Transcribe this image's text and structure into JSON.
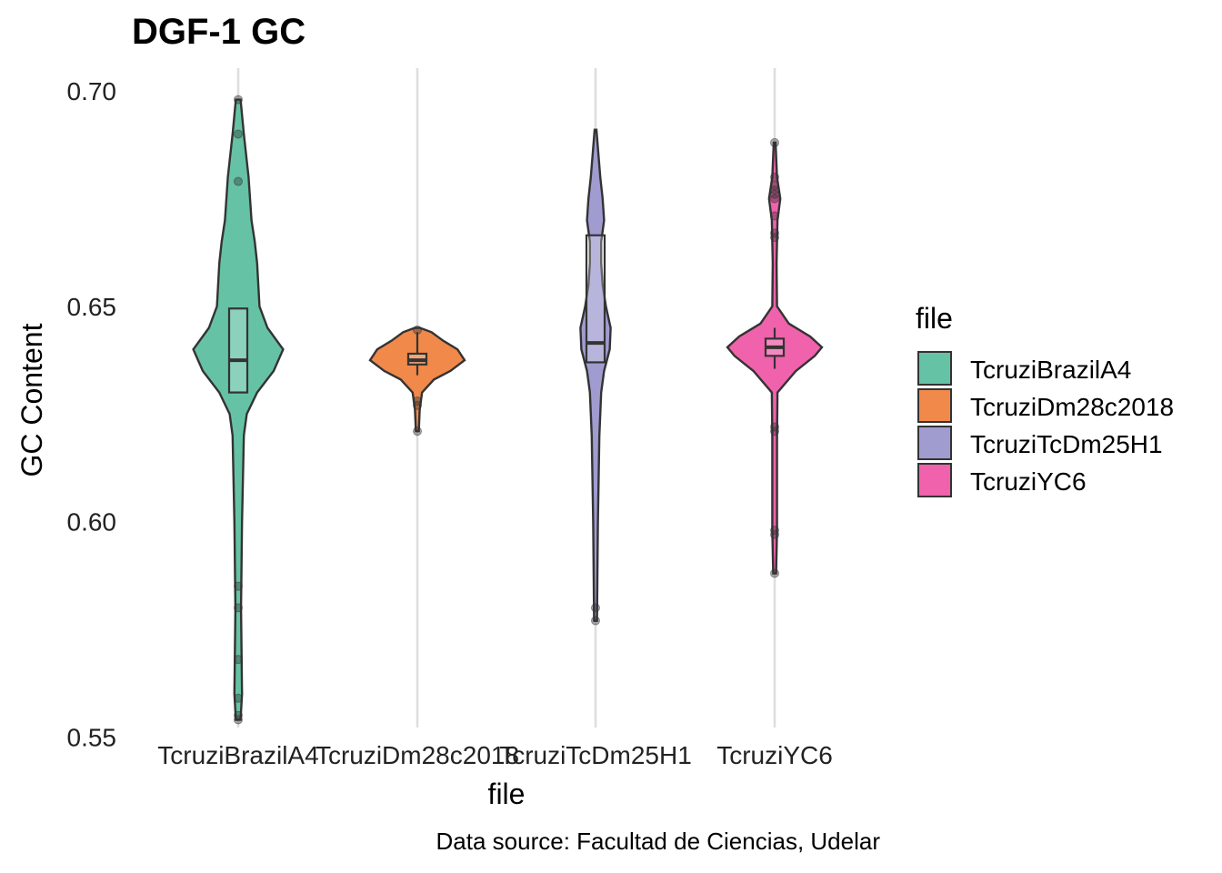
{
  "chart_data": {
    "type": "violin",
    "title": "DGF-1 GC",
    "xlabel": "file",
    "ylabel": "GC Content",
    "caption": "Data source: Facultad de Ciencias, Udelar",
    "ylim": [
      0.5522,
      0.7053
    ],
    "yticks": [
      0.55,
      0.6,
      0.65,
      0.7
    ],
    "ytick_labels": [
      "0.55",
      "0.60",
      "0.65",
      "0.70"
    ],
    "grid": "vertical major lines at categories",
    "legend": {
      "title": "file",
      "position": "right"
    },
    "categories": [
      "TcruziBrazilA4",
      "TcruziDm28c2018",
      "TcruziTcDm25H1",
      "TcruziYC6"
    ],
    "series": [
      {
        "name": "TcruziBrazilA4",
        "color": "#66C2A5",
        "violin_range": [
          0.554,
          0.698
        ],
        "box": {
          "q1": 0.63,
          "median": 0.6375,
          "q3": 0.6495,
          "whisker_low": 0.63,
          "whisker_high": 0.6495
        },
        "density": [
          [
            0.554,
            0.05
          ],
          [
            0.56,
            0.08
          ],
          [
            0.58,
            0.06
          ],
          [
            0.6,
            0.08
          ],
          [
            0.62,
            0.12
          ],
          [
            0.625,
            0.18
          ],
          [
            0.63,
            0.4
          ],
          [
            0.635,
            0.75
          ],
          [
            0.64,
            0.95
          ],
          [
            0.645,
            0.62
          ],
          [
            0.65,
            0.45
          ],
          [
            0.66,
            0.4
          ],
          [
            0.665,
            0.35
          ],
          [
            0.67,
            0.28
          ],
          [
            0.68,
            0.22
          ],
          [
            0.69,
            0.12
          ],
          [
            0.698,
            0.05
          ]
        ],
        "outliers": [
          0.698,
          0.69,
          0.679,
          0.585,
          0.58,
          0.568,
          0.559,
          0.555,
          0.554
        ]
      },
      {
        "name": "TcruziDm28c2018",
        "color": "#F0894A",
        "violin_range": [
          0.621,
          0.645
        ],
        "box": {
          "q1": 0.6365,
          "median": 0.6375,
          "q3": 0.639,
          "whisker_low": 0.634,
          "whisker_high": 0.644
        },
        "density": [
          [
            0.621,
            0.03
          ],
          [
            0.626,
            0.05
          ],
          [
            0.63,
            0.1
          ],
          [
            0.633,
            0.35
          ],
          [
            0.635,
            0.7
          ],
          [
            0.6375,
            1.0
          ],
          [
            0.64,
            0.85
          ],
          [
            0.642,
            0.55
          ],
          [
            0.644,
            0.3
          ],
          [
            0.645,
            0.05
          ]
        ],
        "outliers": [
          0.6445,
          0.628,
          0.627,
          0.621
        ]
      },
      {
        "name": "TcruziTcDm25H1",
        "color": "#A09CD0",
        "violin_range": [
          0.577,
          0.691
        ],
        "box": {
          "q1": 0.637,
          "median": 0.6415,
          "q3": 0.6665,
          "whisker_low": 0.637,
          "whisker_high": 0.6665
        },
        "density": [
          [
            0.577,
            0.03
          ],
          [
            0.6,
            0.05
          ],
          [
            0.62,
            0.08
          ],
          [
            0.63,
            0.12
          ],
          [
            0.635,
            0.18
          ],
          [
            0.64,
            0.3
          ],
          [
            0.645,
            0.32
          ],
          [
            0.65,
            0.22
          ],
          [
            0.655,
            0.15
          ],
          [
            0.66,
            0.12
          ],
          [
            0.665,
            0.12
          ],
          [
            0.67,
            0.18
          ],
          [
            0.675,
            0.15
          ],
          [
            0.68,
            0.1
          ],
          [
            0.691,
            0.02
          ]
        ],
        "outliers": [
          0.58,
          0.577
        ]
      },
      {
        "name": "TcruziYC6",
        "color": "#F062AC",
        "violin_range": [
          0.588,
          0.688
        ],
        "box": {
          "q1": 0.6385,
          "median": 0.6405,
          "q3": 0.6425,
          "whisker_low": 0.6355,
          "whisker_high": 0.645
        },
        "density": [
          [
            0.588,
            0.03
          ],
          [
            0.598,
            0.05
          ],
          [
            0.62,
            0.05
          ],
          [
            0.63,
            0.06
          ],
          [
            0.635,
            0.45
          ],
          [
            0.6385,
            0.85
          ],
          [
            0.6405,
            1.0
          ],
          [
            0.643,
            0.75
          ],
          [
            0.646,
            0.3
          ],
          [
            0.65,
            0.05
          ],
          [
            0.66,
            0.04
          ],
          [
            0.67,
            0.06
          ],
          [
            0.675,
            0.12
          ],
          [
            0.68,
            0.05
          ],
          [
            0.688,
            0.02
          ]
        ],
        "outliers": [
          0.688,
          0.68,
          0.678,
          0.677,
          0.676,
          0.675,
          0.671,
          0.667,
          0.666,
          0.622,
          0.621,
          0.598,
          0.597,
          0.588
        ]
      }
    ]
  }
}
